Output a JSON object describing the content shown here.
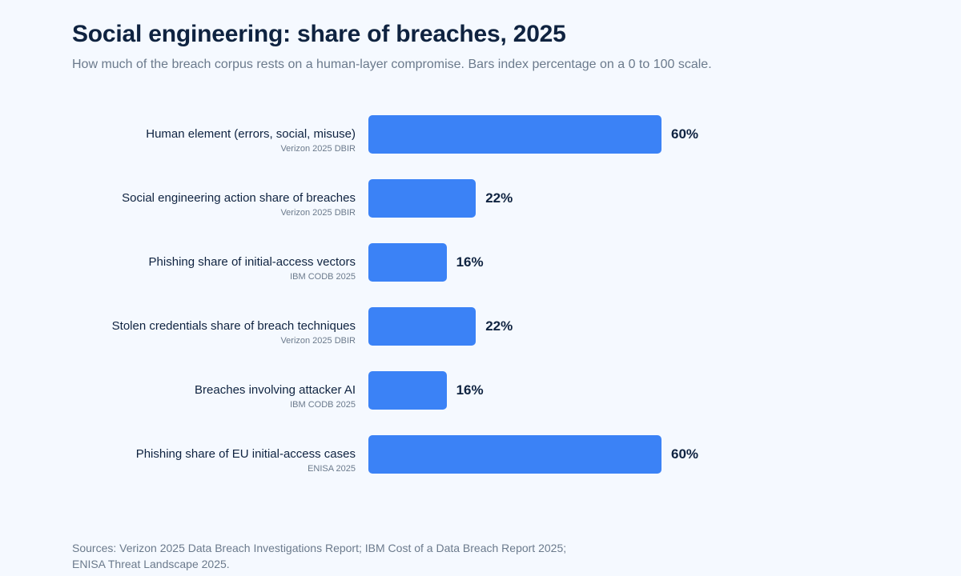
{
  "header": {
    "title": "Social engineering: share of breaches, 2025",
    "subtitle": "How much of the breach corpus rests on a human-layer compromise. Bars index percentage on a 0 to 100 scale."
  },
  "footer": {
    "sources_line1": "Sources: Verizon 2025 Data Breach Investigations Report; IBM Cost of a Data Breach Report 2025;",
    "sources_line2": "ENISA Threat Landscape 2025."
  },
  "colors": {
    "bar": "#3b82f6",
    "background": "#f5f9ff",
    "text": "#0f2340",
    "muted": "#6b7a8c"
  },
  "chart_data": {
    "type": "bar",
    "orientation": "horizontal",
    "xlim": [
      0,
      100
    ],
    "categories": [
      "Human element (errors, social, misuse)",
      "Social engineering action share of breaches",
      "Phishing share of initial-access vectors",
      "Stolen credentials share of breach techniques",
      "Breaches involving attacker AI",
      "Phishing share of EU initial-access cases"
    ],
    "sources": [
      "Verizon 2025 DBIR",
      "Verizon 2025 DBIR",
      "IBM CODB 2025",
      "Verizon 2025 DBIR",
      "IBM CODB 2025",
      "ENISA 2025"
    ],
    "values": [
      60,
      22,
      16,
      22,
      16,
      60
    ],
    "value_labels": [
      "60%",
      "22%",
      "16%",
      "22%",
      "16%",
      "60%"
    ]
  }
}
